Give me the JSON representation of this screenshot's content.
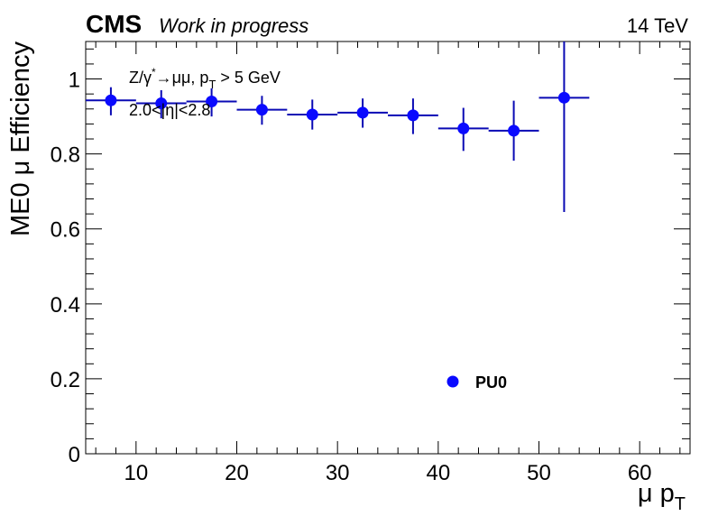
{
  "header": {
    "experiment": "CMS",
    "status": "Work in progress",
    "energy": "14 TeV"
  },
  "annotations": {
    "process_prefix": "Z/γ",
    "process_star": "*",
    "process_arrow": "→μμ, p",
    "process_sub": "T",
    "process_cut": " > 5 GeV",
    "eta_range": "2.0<|η|<2.8"
  },
  "legend": {
    "entry": "PU0"
  },
  "colors": {
    "series": "#0a0aff",
    "errorbar": "#0a0ab4",
    "axis": "#000000",
    "background": "#ffffff"
  },
  "chart_data": {
    "type": "scatter",
    "xlabel": "μ p",
    "xlabel_sub": "T",
    "ylabel": "ME0 μ Efficiency",
    "xlim": [
      5,
      65
    ],
    "ylim": [
      0,
      1.1
    ],
    "grid": false,
    "legend_position": "bottom-center",
    "x_ticks": [
      10,
      20,
      30,
      40,
      50,
      60
    ],
    "x_tick_labels": [
      "10",
      "20",
      "30",
      "40",
      "50",
      "60"
    ],
    "y_ticks": [
      0,
      0.2,
      0.4,
      0.6,
      0.8,
      1
    ],
    "y_tick_labels": [
      "0",
      "0.2",
      "0.4",
      "0.6",
      "0.8",
      "1"
    ],
    "series": [
      {
        "name": "PU0",
        "points": [
          {
            "x": 7.5,
            "xlo": 5,
            "xhi": 10,
            "y": 0.943,
            "yerr_lo": 0.04,
            "yerr_hi": 0.035
          },
          {
            "x": 12.5,
            "xlo": 10,
            "xhi": 15,
            "y": 0.935,
            "yerr_lo": 0.04,
            "yerr_hi": 0.035
          },
          {
            "x": 17.5,
            "xlo": 15,
            "xhi": 20,
            "y": 0.94,
            "yerr_lo": 0.04,
            "yerr_hi": 0.035
          },
          {
            "x": 22.5,
            "xlo": 20,
            "xhi": 25,
            "y": 0.918,
            "yerr_lo": 0.04,
            "yerr_hi": 0.037
          },
          {
            "x": 27.5,
            "xlo": 25,
            "xhi": 30,
            "y": 0.905,
            "yerr_lo": 0.04,
            "yerr_hi": 0.04
          },
          {
            "x": 32.5,
            "xlo": 30,
            "xhi": 35,
            "y": 0.91,
            "yerr_lo": 0.04,
            "yerr_hi": 0.038
          },
          {
            "x": 37.5,
            "xlo": 35,
            "xhi": 40,
            "y": 0.903,
            "yerr_lo": 0.05,
            "yerr_hi": 0.045
          },
          {
            "x": 42.5,
            "xlo": 40,
            "xhi": 45,
            "y": 0.868,
            "yerr_lo": 0.06,
            "yerr_hi": 0.055
          },
          {
            "x": 47.5,
            "xlo": 45,
            "xhi": 50,
            "y": 0.862,
            "yerr_lo": 0.08,
            "yerr_hi": 0.08
          },
          {
            "x": 52.5,
            "xlo": 50,
            "xhi": 55,
            "y": 0.95,
            "yerr_lo": 0.305,
            "yerr_hi": 0.15
          }
        ]
      }
    ]
  }
}
